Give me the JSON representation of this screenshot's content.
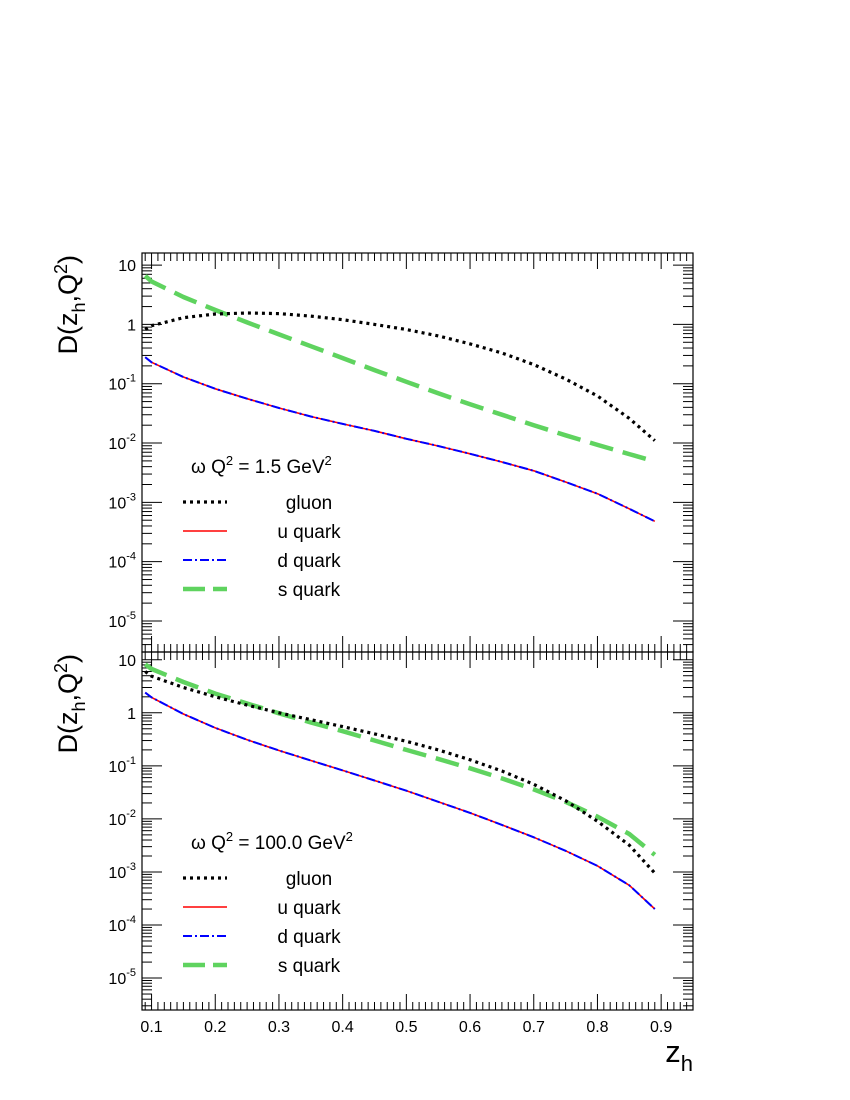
{
  "chart_data": [
    {
      "type": "line",
      "title": "ω  Q² = 1.5 GeV²",
      "title_parts": {
        "hadron": "ω",
        "q": "Q",
        "q_exp": "2",
        "eq": " = 1.5 GeV",
        "unit_exp": "2"
      },
      "ylabel_parts": {
        "main": "D(z",
        "sub": "h",
        "mid": ",Q",
        "sup": "2",
        "end": ")"
      },
      "yscale": "log",
      "xlim": [
        0.085,
        0.95
      ],
      "ylim": [
        3e-06,
        16
      ],
      "ytick_decades": [
        -5,
        -4,
        -3,
        -2,
        -1,
        0,
        1
      ],
      "ytick_labels": [
        "10^-5",
        "10^-4",
        "10^-3",
        "10^-2",
        "10^-1",
        "1",
        "10"
      ],
      "legend_position": "lower-left",
      "x": [
        0.09,
        0.1,
        0.15,
        0.2,
        0.25,
        0.3,
        0.35,
        0.4,
        0.45,
        0.5,
        0.55,
        0.6,
        0.65,
        0.7,
        0.75,
        0.8,
        0.85,
        0.89
      ],
      "series": [
        {
          "name": "gluon",
          "color": "#000000",
          "style": "dotted",
          "values": [
            0.82,
            0.95,
            1.3,
            1.5,
            1.56,
            1.52,
            1.38,
            1.2,
            1.0,
            0.82,
            0.64,
            0.47,
            0.33,
            0.21,
            0.12,
            0.062,
            0.026,
            0.011
          ]
        },
        {
          "name": "u quark",
          "color": "#ff0000",
          "style": "solid",
          "values": [
            0.28,
            0.23,
            0.13,
            0.082,
            0.056,
            0.039,
            0.028,
            0.021,
            0.016,
            0.0118,
            0.0089,
            0.0066,
            0.0048,
            0.0034,
            0.0022,
            0.0014,
            0.00078,
            0.00048
          ]
        },
        {
          "name": "d quark",
          "color": "#0000ff",
          "style": "dashdot",
          "values": [
            0.28,
            0.23,
            0.13,
            0.082,
            0.056,
            0.039,
            0.028,
            0.021,
            0.016,
            0.0118,
            0.0089,
            0.0066,
            0.0048,
            0.0034,
            0.0022,
            0.0014,
            0.00078,
            0.00048
          ]
        },
        {
          "name": "s quark",
          "color": "#5fd35f",
          "style": "longdash",
          "values": [
            6.6,
            5.3,
            2.9,
            1.75,
            1.08,
            0.68,
            0.43,
            0.27,
            0.17,
            0.108,
            0.069,
            0.045,
            0.03,
            0.02,
            0.0135,
            0.0093,
            0.0065,
            0.0049
          ]
        }
      ]
    },
    {
      "type": "line",
      "title": "ω  Q² = 100.0 GeV²",
      "title_parts": {
        "hadron": "ω",
        "q": "Q",
        "q_exp": "2",
        "eq": " = 100.0 GeV",
        "unit_exp": "2"
      },
      "ylabel_parts": {
        "main": "D(z",
        "sub": "h",
        "mid": ",Q",
        "sup": "2",
        "end": ")"
      },
      "xlabel_parts": {
        "main": "z",
        "sub": "h"
      },
      "yscale": "log",
      "xlim": [
        0.085,
        0.95
      ],
      "ylim": [
        2.5e-06,
        14
      ],
      "ytick_decades": [
        -5,
        -4,
        -3,
        -2,
        -1,
        0,
        1
      ],
      "ytick_labels": [
        "10^-5",
        "10^-4",
        "10^-3",
        "10^-2",
        "10^-1",
        "1",
        "10"
      ],
      "xticks": [
        0.1,
        0.2,
        0.3,
        0.4,
        0.5,
        0.6,
        0.7,
        0.8,
        0.9
      ],
      "xtick_labels": [
        "0.1",
        "0.2",
        "0.3",
        "0.4",
        "0.5",
        "0.6",
        "0.7",
        "0.8",
        "0.9"
      ],
      "legend_position": "lower-left",
      "x": [
        0.09,
        0.1,
        0.15,
        0.2,
        0.25,
        0.3,
        0.35,
        0.4,
        0.45,
        0.5,
        0.55,
        0.6,
        0.65,
        0.7,
        0.75,
        0.8,
        0.85,
        0.89
      ],
      "series": [
        {
          "name": "gluon",
          "color": "#000000",
          "style": "dotted",
          "values": [
            6.0,
            4.9,
            3.0,
            2.0,
            1.4,
            1.0,
            0.74,
            0.55,
            0.4,
            0.29,
            0.2,
            0.13,
            0.08,
            0.045,
            0.022,
            0.009,
            0.0032,
            0.00095
          ]
        },
        {
          "name": "u quark",
          "color": "#ff0000",
          "style": "solid",
          "values": [
            2.4,
            1.95,
            0.95,
            0.52,
            0.31,
            0.195,
            0.126,
            0.082,
            0.053,
            0.034,
            0.021,
            0.013,
            0.0077,
            0.0045,
            0.0025,
            0.0013,
            0.00056,
            0.0002
          ]
        },
        {
          "name": "d quark",
          "color": "#0000ff",
          "style": "dashdot",
          "values": [
            2.4,
            1.95,
            0.95,
            0.52,
            0.31,
            0.195,
            0.126,
            0.082,
            0.053,
            0.034,
            0.021,
            0.013,
            0.0077,
            0.0045,
            0.0025,
            0.0013,
            0.00056,
            0.0002
          ]
        },
        {
          "name": "s quark",
          "color": "#5fd35f",
          "style": "longdash",
          "values": [
            8.2,
            6.7,
            3.8,
            2.3,
            1.5,
            0.98,
            0.66,
            0.45,
            0.3,
            0.2,
            0.135,
            0.09,
            0.058,
            0.036,
            0.021,
            0.011,
            0.0052,
            0.0021
          ]
        }
      ]
    }
  ]
}
